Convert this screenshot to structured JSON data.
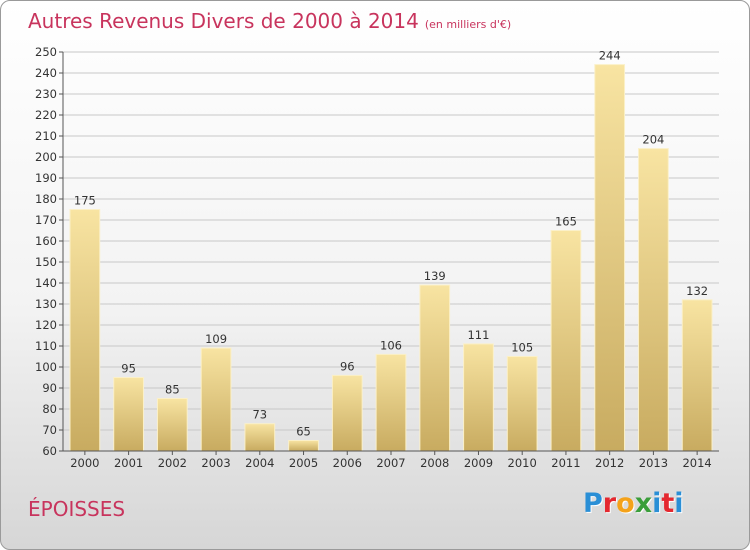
{
  "header": {
    "title": "Autres Revenus Divers de 2000 à 2014",
    "subtitle": "(en milliers d'€)"
  },
  "footer": {
    "commune": "ÉPOISSES",
    "logo_letters": [
      "P",
      "r",
      "o",
      "x",
      "i",
      "t",
      "i"
    ],
    "logo_colors": [
      "#2a8fd6",
      "#e4282f",
      "#f4a21a",
      "#3a9e3a",
      "#2a8fd6",
      "#e4282f",
      "#2a8fd6"
    ]
  },
  "colors": {
    "title": "#c8345d",
    "bar_light": "#f8e4a2",
    "bar_dark": "#c8ab60",
    "grid": "#c8c8c8",
    "axis": "#555555",
    "text": "#333333"
  },
  "chart_data": {
    "type": "bar",
    "title": "Autres Revenus Divers de 2000 à 2014",
    "xlabel": "",
    "ylabel": "",
    "categories": [
      "2000",
      "2001",
      "2002",
      "2003",
      "2004",
      "2005",
      "2006",
      "2007",
      "2008",
      "2009",
      "2010",
      "2011",
      "2012",
      "2013",
      "2014"
    ],
    "values": [
      175,
      95,
      85,
      109,
      73,
      65,
      96,
      106,
      139,
      111,
      105,
      165,
      244,
      204,
      132
    ],
    "ylim": [
      60,
      250
    ],
    "yticks": [
      60,
      70,
      80,
      90,
      100,
      110,
      120,
      130,
      140,
      150,
      160,
      170,
      180,
      190,
      200,
      210,
      220,
      230,
      240,
      250
    ],
    "grid": true,
    "data_labels": true
  }
}
